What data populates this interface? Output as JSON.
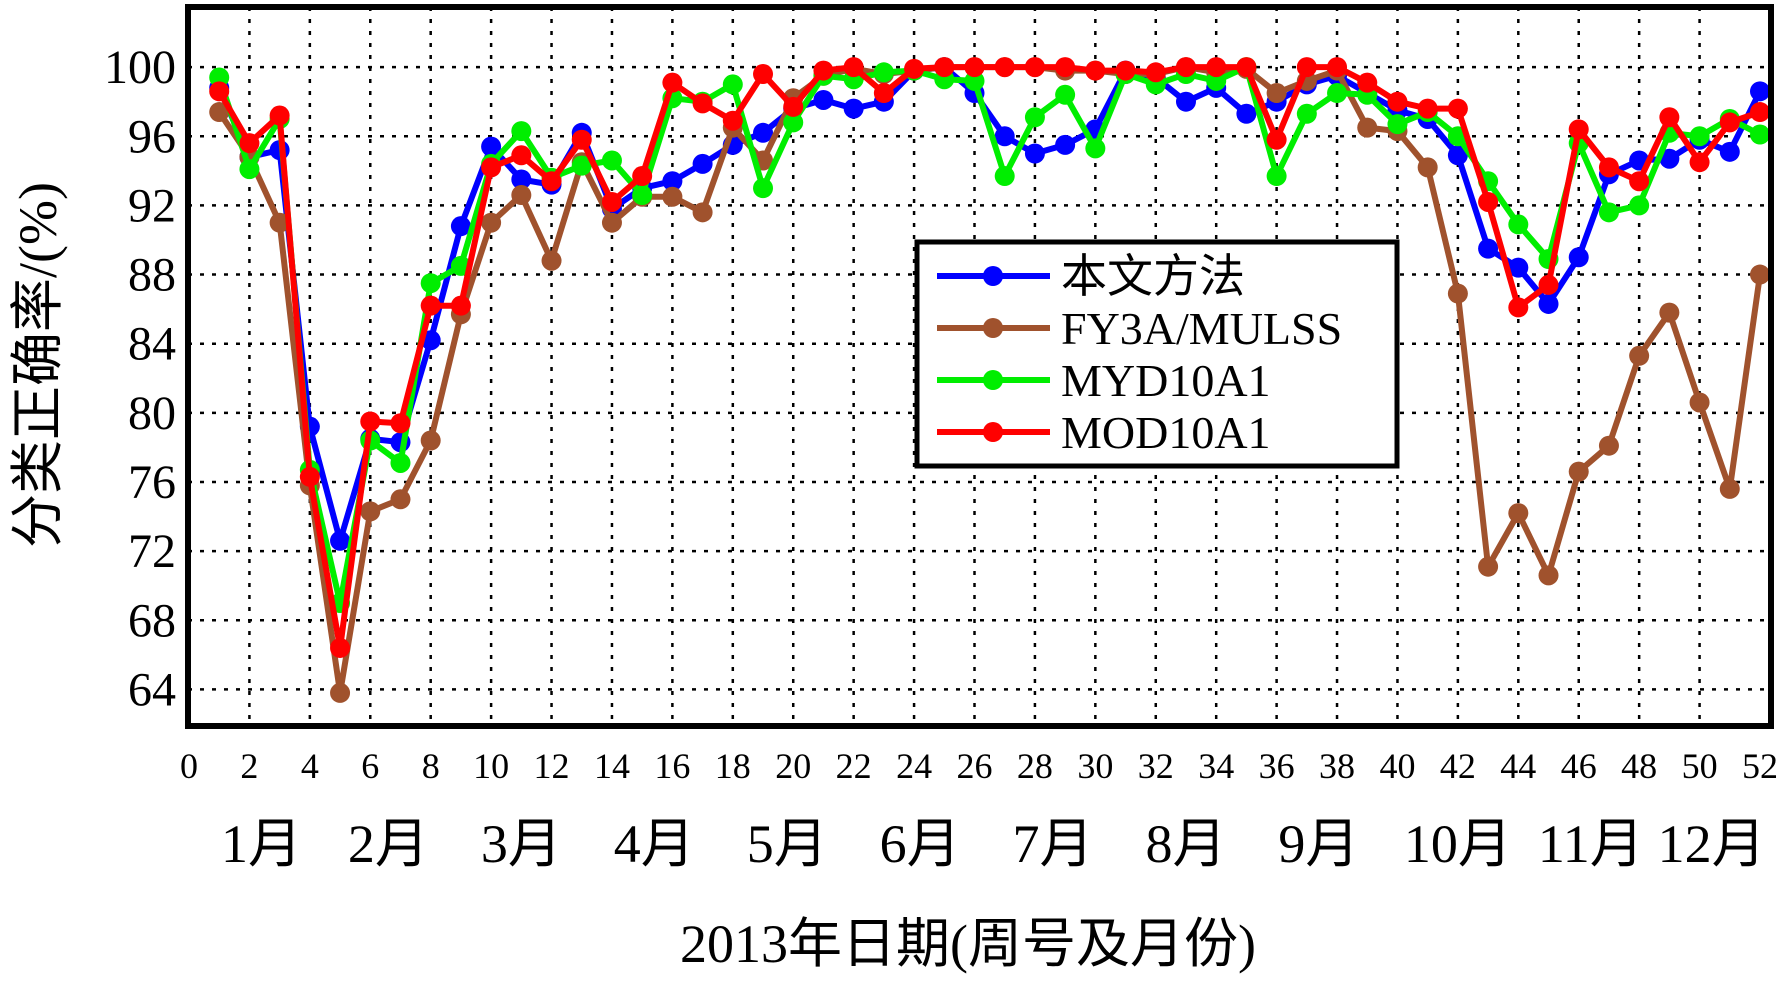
{
  "chart_data": {
    "type": "line",
    "title": "",
    "xlabel": "2013年日期(周号及月份)",
    "ylabel": "分类正确率/(%)",
    "xlim": [
      0,
      52
    ],
    "ylim": [
      62,
      102
    ],
    "x_ticks": [
      0,
      2,
      4,
      6,
      8,
      10,
      12,
      14,
      16,
      18,
      20,
      22,
      24,
      26,
      28,
      30,
      32,
      34,
      36,
      38,
      40,
      42,
      44,
      46,
      48,
      50,
      52
    ],
    "y_ticks": [
      64,
      68,
      72,
      76,
      80,
      84,
      88,
      92,
      96,
      100
    ],
    "months": [
      {
        "label": "1月",
        "x": 2.4
      },
      {
        "label": "2月",
        "x": 6.6
      },
      {
        "label": "3月",
        "x": 11.0
      },
      {
        "label": "4月",
        "x": 15.4
      },
      {
        "label": "5月",
        "x": 19.8
      },
      {
        "label": "6月",
        "x": 24.2
      },
      {
        "label": "7月",
        "x": 28.6
      },
      {
        "label": "8月",
        "x": 33.0
      },
      {
        "label": "9月",
        "x": 37.4
      },
      {
        "label": "10月",
        "x": 42.0
      },
      {
        "label": "11月",
        "x": 46.4
      },
      {
        "label": "12月",
        "x": 50.4
      }
    ],
    "grid": true,
    "legend_position": "center-right",
    "x": [
      1,
      2,
      3,
      4,
      5,
      6,
      7,
      8,
      9,
      10,
      11,
      12,
      13,
      14,
      15,
      16,
      17,
      18,
      19,
      20,
      21,
      22,
      23,
      24,
      25,
      26,
      27,
      28,
      29,
      30,
      31,
      32,
      33,
      34,
      35,
      36,
      37,
      38,
      39,
      40,
      41,
      42,
      43,
      44,
      45,
      46,
      47,
      48,
      49,
      50,
      51,
      52
    ],
    "series": [
      {
        "name": "本文方法",
        "color": "#0000ff",
        "values": [
          98.8,
          94.8,
          95.2,
          79.2,
          72.6,
          78.5,
          78.3,
          84.2,
          90.8,
          95.4,
          93.5,
          93.2,
          96.2,
          91.8,
          93.0,
          93.4,
          94.4,
          95.5,
          96.2,
          97.6,
          98.1,
          97.6,
          98.0,
          99.8,
          100.0,
          98.5,
          96.0,
          95.0,
          95.5,
          96.4,
          99.8,
          99.4,
          98.0,
          98.8,
          97.3,
          98.0,
          99.0,
          99.5,
          98.5,
          97.5,
          97.0,
          94.9,
          89.5,
          88.4,
          86.3,
          89.0,
          93.8,
          94.6,
          94.7,
          95.8,
          95.1,
          98.6
        ]
      },
      {
        "name": "FY3A/MULSS",
        "color": "#a0522d",
        "values": [
          97.4,
          94.8,
          91.0,
          75.8,
          63.8,
          74.3,
          75.0,
          78.4,
          85.7,
          91.0,
          92.6,
          88.8,
          94.5,
          91.0,
          92.5,
          92.5,
          91.6,
          96.5,
          94.6,
          98.2,
          99.5,
          99.9,
          99.6,
          99.8,
          100.0,
          100.0,
          100.0,
          100.0,
          99.8,
          99.8,
          99.6,
          99.6,
          100.0,
          99.7,
          99.9,
          98.5,
          99.2,
          99.8,
          96.5,
          96.3,
          94.2,
          86.9,
          71.1,
          74.2,
          70.6,
          76.6,
          78.1,
          83.3,
          85.8,
          80.6,
          75.6,
          88.0
        ]
      },
      {
        "name": "MYD10A1",
        "color": "#00ee00",
        "values": [
          99.4,
          94.1,
          97.0,
          76.7,
          69.0,
          78.4,
          77.1,
          87.5,
          88.5,
          94.4,
          96.3,
          93.6,
          94.3,
          94.6,
          92.6,
          98.2,
          98.0,
          99.0,
          93.0,
          96.8,
          99.5,
          99.3,
          99.7,
          99.8,
          99.3,
          99.2,
          93.7,
          97.1,
          98.4,
          95.3,
          99.6,
          99.0,
          99.6,
          99.2,
          100.0,
          93.7,
          97.3,
          98.5,
          98.4,
          96.7,
          97.4,
          96.0,
          93.4,
          90.9,
          88.9,
          95.6,
          91.6,
          92.0,
          96.2,
          96.0,
          97.0,
          96.1
        ]
      },
      {
        "name": "MOD10A1",
        "color": "#ff0000",
        "values": [
          98.6,
          95.6,
          97.2,
          76.3,
          66.4,
          79.5,
          79.4,
          86.2,
          86.2,
          94.2,
          94.9,
          93.4,
          95.8,
          92.2,
          93.7,
          99.1,
          97.9,
          96.9,
          99.6,
          97.7,
          99.8,
          100.0,
          98.5,
          99.9,
          100.0,
          100.0,
          100.0,
          100.0,
          100.0,
          99.8,
          99.8,
          99.7,
          100.0,
          100.0,
          100.0,
          95.8,
          100.0,
          100.0,
          99.1,
          98.0,
          97.6,
          97.6,
          92.2,
          86.1,
          87.4,
          96.4,
          94.2,
          93.4,
          97.1,
          94.5,
          96.8,
          97.4
        ]
      }
    ]
  }
}
